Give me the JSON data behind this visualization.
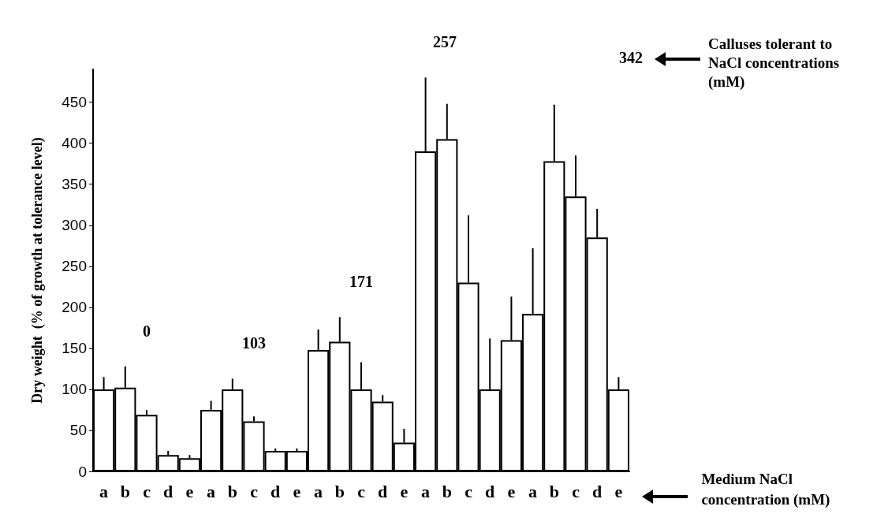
{
  "chart_data": {
    "type": "bar",
    "ylabel": "Dry weight  (% of growth at tolerance level)",
    "categories": [
      "a",
      "b",
      "c",
      "d",
      "e",
      "a",
      "b",
      "c",
      "d",
      "e",
      "a",
      "b",
      "c",
      "d",
      "e",
      "a",
      "b",
      "c",
      "d",
      "e",
      "a",
      "b",
      "c",
      "d",
      "e"
    ],
    "values": [
      100,
      102,
      69,
      20,
      16,
      75,
      100,
      61,
      25,
      25,
      148,
      158,
      100,
      85,
      35,
      390,
      405,
      230,
      100,
      160,
      192,
      378,
      335,
      285,
      100
    ],
    "errors": [
      [
        100,
        115
      ],
      [
        102,
        128
      ],
      [
        69,
        75
      ],
      [
        20,
        25
      ],
      [
        16,
        20
      ],
      [
        75,
        86
      ],
      [
        100,
        113
      ],
      [
        61,
        67
      ],
      [
        25,
        28
      ],
      [
        25,
        28
      ],
      [
        148,
        173
      ],
      [
        158,
        188
      ],
      [
        100,
        133
      ],
      [
        85,
        93
      ],
      [
        35,
        52
      ],
      [
        390,
        480
      ],
      [
        405,
        448
      ],
      [
        230,
        312
      ],
      [
        100,
        162
      ],
      [
        160,
        213
      ],
      [
        192,
        272
      ],
      [
        378,
        447
      ],
      [
        335,
        385
      ],
      [
        285,
        320
      ],
      [
        100,
        115
      ]
    ],
    "color": "#ffffff",
    "ylim": [
      0,
      490
    ],
    "yticks": [
      0,
      50,
      100,
      150,
      200,
      250,
      300,
      350,
      400,
      450
    ],
    "grid": false,
    "annotations": [
      "0",
      "103",
      "171",
      "257",
      "342",
      "Calluses tolerant to NaCl concentrations (mM)",
      "Medium NaCl concentration (mM)"
    ]
  }
}
